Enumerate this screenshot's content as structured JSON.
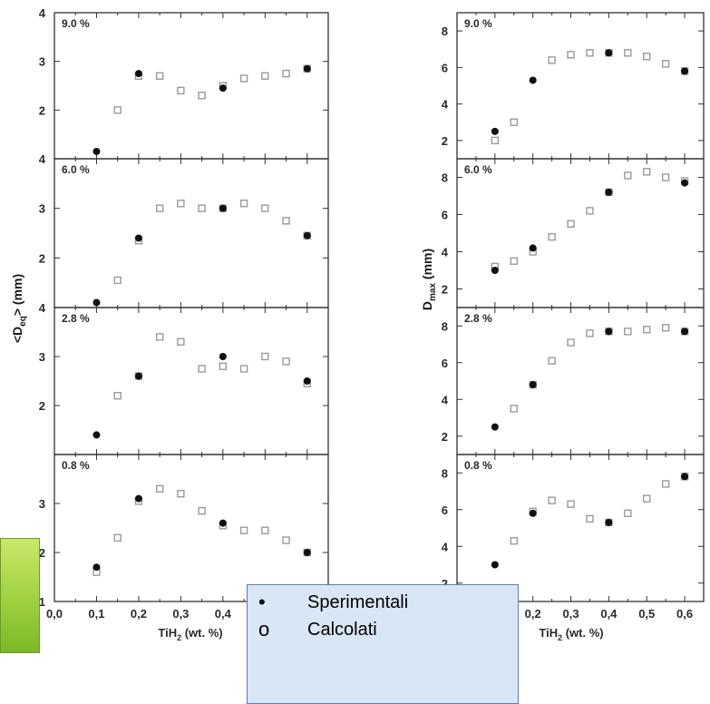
{
  "left_ylabel": "<D_eq> (mm)",
  "right_ylabel": "D_max (mm)",
  "xlabel": "TiH2 (wt. %)",
  "x_ticks": [
    "0,0",
    "0,1",
    "0,2",
    "0,3",
    "0,4",
    "0,5",
    "0,6"
  ],
  "legend": {
    "experimental_symbol": "•",
    "experimental_label": "Sperimentali",
    "calculated_symbol": "o",
    "calculated_label": "Calcolati"
  },
  "chart_data": [
    {
      "type": "scatter",
      "panel_label": "9.0 %",
      "ylabel": "<D_eq> (mm)",
      "xlim": [
        0,
        0.65
      ],
      "ylim": [
        1,
        4
      ],
      "yticks": [
        "4",
        "3",
        "2"
      ],
      "series": [
        {
          "name": "Sperimentali",
          "x": [
            0.1,
            0.2,
            0.4,
            0.6
          ],
          "y": [
            1.15,
            2.75,
            2.45,
            2.85
          ]
        },
        {
          "name": "Calcolati",
          "x": [
            0.15,
            0.2,
            0.25,
            0.3,
            0.35,
            0.4,
            0.45,
            0.5,
            0.55,
            0.6
          ],
          "y": [
            2.0,
            2.7,
            2.7,
            2.4,
            2.3,
            2.5,
            2.65,
            2.7,
            2.75,
            2.85
          ]
        }
      ]
    },
    {
      "type": "scatter",
      "panel_label": "6.0 %",
      "ylabel": "<D_eq> (mm)",
      "xlim": [
        0,
        0.65
      ],
      "ylim": [
        1,
        4
      ],
      "yticks": [
        "4",
        "3",
        "2"
      ],
      "series": [
        {
          "name": "Sperimentali",
          "x": [
            0.1,
            0.2,
            0.4,
            0.6
          ],
          "y": [
            1.1,
            2.4,
            3.0,
            2.45
          ]
        },
        {
          "name": "Calcolati",
          "x": [
            0.15,
            0.2,
            0.25,
            0.3,
            0.35,
            0.4,
            0.45,
            0.5,
            0.55,
            0.6
          ],
          "y": [
            1.55,
            2.35,
            3.0,
            3.1,
            3.0,
            3.0,
            3.1,
            3.0,
            2.75,
            2.45
          ]
        }
      ]
    },
    {
      "type": "scatter",
      "panel_label": "2.8 %",
      "ylabel": "<D_eq> (mm)",
      "xlim": [
        0,
        0.65
      ],
      "ylim": [
        1,
        4
      ],
      "yticks": [
        "4",
        "3",
        "2"
      ],
      "series": [
        {
          "name": "Sperimentali",
          "x": [
            0.1,
            0.2,
            0.4,
            0.6
          ],
          "y": [
            1.4,
            2.6,
            3.0,
            2.5
          ]
        },
        {
          "name": "Calcolati",
          "x": [
            0.15,
            0.2,
            0.25,
            0.3,
            0.35,
            0.4,
            0.45,
            0.5,
            0.55,
            0.6
          ],
          "y": [
            2.2,
            2.6,
            3.4,
            3.3,
            2.75,
            2.8,
            2.75,
            3.0,
            2.9,
            2.45
          ]
        }
      ]
    },
    {
      "type": "scatter",
      "panel_label": "0.8 %",
      "ylabel": "<D_eq> (mm)",
      "xlim": [
        0,
        0.65
      ],
      "ylim": [
        1,
        4
      ],
      "yticks": [
        "3",
        "2",
        "1"
      ],
      "series": [
        {
          "name": "Sperimentali",
          "x": [
            0.1,
            0.2,
            0.4,
            0.6
          ],
          "y": [
            1.7,
            3.1,
            2.6,
            2.0
          ]
        },
        {
          "name": "Calcolati",
          "x": [
            0.1,
            0.15,
            0.2,
            0.25,
            0.3,
            0.35,
            0.4,
            0.45,
            0.5,
            0.55,
            0.6
          ],
          "y": [
            1.6,
            2.3,
            3.05,
            3.3,
            3.2,
            2.85,
            2.55,
            2.45,
            2.45,
            2.25,
            2.0
          ]
        }
      ]
    },
    {
      "type": "scatter",
      "panel_label": "9.0 %",
      "ylabel": "D_max (mm)",
      "xlim": [
        0,
        0.65
      ],
      "ylim": [
        1,
        9
      ],
      "yticks": [
        "8",
        "6",
        "4",
        "2"
      ],
      "series": [
        {
          "name": "Sperimentali",
          "x": [
            0.1,
            0.2,
            0.4,
            0.6
          ],
          "y": [
            2.5,
            5.3,
            6.8,
            5.8
          ]
        },
        {
          "name": "Calcolati",
          "x": [
            0.1,
            0.15,
            0.25,
            0.3,
            0.35,
            0.4,
            0.45,
            0.5,
            0.55,
            0.6
          ],
          "y": [
            2.0,
            3.0,
            6.4,
            6.7,
            6.8,
            6.8,
            6.8,
            6.6,
            6.2,
            5.8
          ]
        }
      ]
    },
    {
      "type": "scatter",
      "panel_label": "6.0 %",
      "ylabel": "D_max (mm)",
      "xlim": [
        0,
        0.65
      ],
      "ylim": [
        1,
        9
      ],
      "yticks": [
        "8",
        "6",
        "4",
        "2"
      ],
      "series": [
        {
          "name": "Sperimentali",
          "x": [
            0.1,
            0.2,
            0.4,
            0.6
          ],
          "y": [
            3.0,
            4.2,
            7.2,
            7.7
          ]
        },
        {
          "name": "Calcolati",
          "x": [
            0.1,
            0.15,
            0.2,
            0.25,
            0.3,
            0.35,
            0.4,
            0.45,
            0.5,
            0.55,
            0.6
          ],
          "y": [
            3.2,
            3.5,
            4.0,
            4.8,
            5.5,
            6.2,
            7.2,
            8.1,
            8.3,
            8.0,
            7.8
          ]
        }
      ]
    },
    {
      "type": "scatter",
      "panel_label": "2.8 %",
      "ylabel": "D_max (mm)",
      "xlim": [
        0,
        0.65
      ],
      "ylim": [
        1,
        9
      ],
      "yticks": [
        "8",
        "6",
        "4",
        "2"
      ],
      "series": [
        {
          "name": "Sperimentali",
          "x": [
            0.1,
            0.2,
            0.4,
            0.6
          ],
          "y": [
            2.5,
            4.8,
            7.7,
            7.7
          ]
        },
        {
          "name": "Calcolati",
          "x": [
            0.15,
            0.2,
            0.25,
            0.3,
            0.35,
            0.4,
            0.45,
            0.5,
            0.55,
            0.6
          ],
          "y": [
            3.5,
            4.8,
            6.1,
            7.1,
            7.6,
            7.7,
            7.7,
            7.8,
            7.9,
            7.7
          ]
        }
      ]
    },
    {
      "type": "scatter",
      "panel_label": "0.8 %",
      "ylabel": "D_max (mm)",
      "xlim": [
        0,
        0.65
      ],
      "ylim": [
        1,
        9
      ],
      "yticks": [
        "8",
        "6",
        "4",
        "2"
      ],
      "series": [
        {
          "name": "Sperimentali",
          "x": [
            0.1,
            0.2,
            0.4,
            0.6
          ],
          "y": [
            3.0,
            5.8,
            5.3,
            7.8
          ]
        },
        {
          "name": "Calcolati",
          "x": [
            0.15,
            0.2,
            0.25,
            0.3,
            0.35,
            0.4,
            0.45,
            0.5,
            0.55,
            0.6
          ],
          "y": [
            4.3,
            5.9,
            6.5,
            6.3,
            5.5,
            5.3,
            5.8,
            6.6,
            7.4,
            7.8
          ]
        }
      ]
    }
  ]
}
